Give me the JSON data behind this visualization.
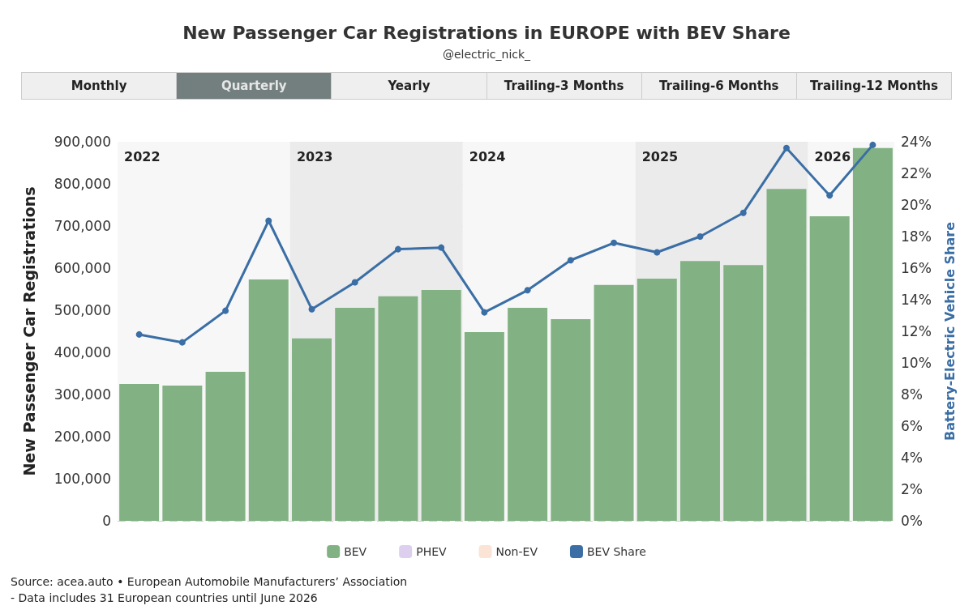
{
  "chart_data": {
    "type": "bar",
    "title": "New Passenger Car Registrations in EUROPE with BEV Share",
    "subtitle": "@electric_nick_",
    "ylabel": "New Passenger Car Registrations",
    "y2label": "Battery-Electric Vehicle Share",
    "categories": [
      null,
      null,
      null,
      null,
      null,
      null,
      null,
      null,
      null,
      null,
      null,
      null,
      null,
      null,
      null,
      null,
      null,
      null
    ],
    "series": [
      {
        "name": "BEV",
        "color": "#82b283",
        "values": [
          325000,
          321000,
          354000,
          573000,
          433000,
          506000,
          533000,
          548000,
          448000,
          506000,
          479000,
          560000,
          575000,
          617000,
          607000,
          788000,
          723000,
          885000
        ]
      },
      {
        "name": "PHEV",
        "type": "bar",
        "color": "#ddd0ee",
        "values": [
          null,
          null,
          null,
          null,
          null,
          null,
          null,
          null,
          null,
          null,
          null,
          null,
          null,
          null,
          null,
          null,
          null,
          null
        ]
      },
      {
        "name": "Non-EV",
        "type": "bar",
        "color": "#fbe3d6",
        "values": [
          null,
          null,
          null,
          null,
          null,
          null,
          null,
          null,
          null,
          null,
          null,
          null,
          null,
          null,
          null,
          null,
          null,
          null
        ]
      },
      {
        "name": "BEV Share",
        "type": "line",
        "axis": "y2",
        "color": "#3a6ea5",
        "values": [
          11.8,
          11.3,
          13.3,
          19.0,
          13.4,
          15.1,
          17.2,
          17.3,
          13.2,
          14.6,
          16.5,
          17.6,
          17.0,
          18.0,
          19.5,
          23.6,
          20.6,
          23.8
        ]
      }
    ],
    "ylim": [
      0,
      900000
    ],
    "yticks": [
      {
        "value": 0,
        "label": "0"
      },
      {
        "value": 100000,
        "label": "100,000"
      },
      {
        "value": 200000,
        "label": "200,000"
      },
      {
        "value": 300000,
        "label": "300,000"
      },
      {
        "value": 400000,
        "label": "400,000"
      },
      {
        "value": 500000,
        "label": "500,000"
      },
      {
        "value": 600000,
        "label": "600,000"
      },
      {
        "value": 700000,
        "label": "700,000"
      },
      {
        "value": 800000,
        "label": "800,000"
      },
      {
        "value": 900000,
        "label": "900,000"
      }
    ],
    "y2lim": [
      0,
      24
    ],
    "y2ticks": [
      {
        "value": 0,
        "label": "0%"
      },
      {
        "value": 2,
        "label": "2%"
      },
      {
        "value": 4,
        "label": "4%"
      },
      {
        "value": 6,
        "label": "6%"
      },
      {
        "value": 8,
        "label": "8%"
      },
      {
        "value": 10,
        "label": "10%"
      },
      {
        "value": 12,
        "label": "12%"
      },
      {
        "value": 14,
        "label": "14%"
      },
      {
        "value": 16,
        "label": "16%"
      },
      {
        "value": 18,
        "label": "18%"
      },
      {
        "value": 20,
        "label": "20%"
      },
      {
        "value": 22,
        "label": "22%"
      },
      {
        "value": 24,
        "label": "24%"
      }
    ],
    "annotations": [
      "Monthly",
      "Quarterly",
      "Yearly",
      "Trailing-3 Months",
      "Trailing-6 Months",
      "Trailing-12 Months",
      "2022",
      "2023",
      "2024",
      "2025",
      "2026",
      "Source: acea.auto • European Automobile Manufacturers’ Association",
      "- Data includes 31 European countries until June 2026"
    ],
    "tick_labels": "y",
    "grid": "y",
    "legend": "bottom",
    "marker": "circle",
    "line_style": "solid"
  }
}
